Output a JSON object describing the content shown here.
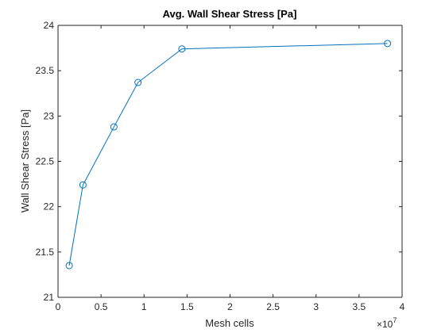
{
  "chart_data": {
    "type": "line",
    "title": "Avg. Wall Shear Stress [Pa]",
    "xlabel": "Mesh cells",
    "ylabel": "Wall Shear Stress [Pa]",
    "x_exponent_base": "×10",
    "x_exponent_power": "7",
    "xlim": [
      0,
      4
    ],
    "ylim": [
      21,
      24
    ],
    "xticks": [
      0,
      0.5,
      1,
      1.5,
      2,
      2.5,
      3,
      3.5,
      4
    ],
    "xtick_labels": [
      "0",
      "0.5",
      "1",
      "1.5",
      "2",
      "2.5",
      "3",
      "3.5",
      "4"
    ],
    "yticks": [
      21,
      21.5,
      22,
      22.5,
      23,
      23.5,
      24
    ],
    "ytick_labels": [
      "21",
      "21.5",
      "22",
      "22.5",
      "23",
      "23.5",
      "24"
    ],
    "grid": false,
    "marker": "circle",
    "color": "#0072BD",
    "series": [
      {
        "x": [
          0.13,
          0.29,
          0.65,
          0.93,
          1.44,
          3.83
        ],
        "y": [
          21.35,
          22.24,
          22.88,
          23.37,
          23.74,
          23.8
        ]
      }
    ]
  }
}
